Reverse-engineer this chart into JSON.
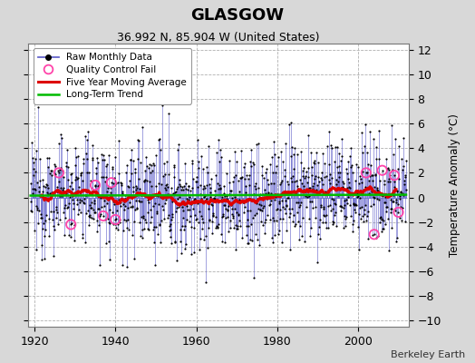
{
  "title": "GLASGOW",
  "subtitle": "36.992 N, 85.904 W (United States)",
  "attribution": "Berkeley Earth",
  "ylabel": "Temperature Anomaly (°C)",
  "xlim": [
    1918.5,
    2012.5
  ],
  "ylim": [
    -10.5,
    12.5
  ],
  "yticks": [
    -10,
    -8,
    -6,
    -4,
    -2,
    0,
    2,
    4,
    6,
    8,
    10,
    12
  ],
  "xticks": [
    1920,
    1940,
    1960,
    1980,
    2000
  ],
  "background_color": "#d8d8d8",
  "plot_background": "#ffffff",
  "grid_color": "#b0b0b0",
  "grid_style": "--",
  "raw_line_color": "#6666cc",
  "raw_dot_color": "#000000",
  "qc_fail_color": "#ff44aa",
  "moving_avg_color": "#dd0000",
  "trend_color": "#00bb00",
  "seed": 12345,
  "start_year": 1919,
  "end_year": 2011,
  "n_years": 93,
  "noise_std": 2.2,
  "qc_fail_positions": [
    [
      1926,
      2
    ],
    [
      1929,
      -2.2
    ],
    [
      1935,
      1.0
    ],
    [
      1937,
      -1.5
    ],
    [
      1939,
      1.2
    ],
    [
      1940,
      -1.8
    ],
    [
      2002,
      2.0
    ],
    [
      2004,
      -3.0
    ],
    [
      2006,
      2.2
    ],
    [
      2009,
      1.8
    ],
    [
      2010,
      -1.2
    ]
  ],
  "trend_y0": 0.15,
  "trend_y1": 0.22,
  "figsize": [
    5.24,
    4.0
  ],
  "dpi": 100
}
